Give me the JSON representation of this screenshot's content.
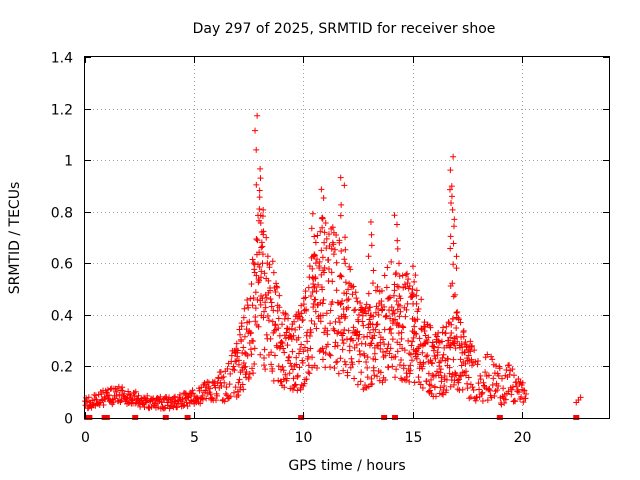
{
  "chart_data": {
    "type": "scatter",
    "title": "Day 297 of 2025, SRMTID for receiver shoe",
    "xlabel": "GPS time / hours",
    "ylabel": "SRMTID / TECUs",
    "xlim": [
      0,
      24
    ],
    "ylim": [
      0,
      1.4
    ],
    "xticks": [
      0,
      5,
      10,
      15,
      20
    ],
    "xtick_labels": [
      "0",
      "5",
      "10",
      "15",
      "20"
    ],
    "yticks": [
      0,
      0.2,
      0.4,
      0.6,
      0.8,
      1.0,
      1.2,
      1.4
    ],
    "ytick_labels": [
      "0",
      "0.2",
      "0.4",
      "0.6",
      "0.8",
      "1",
      "1.2",
      "1.4"
    ],
    "grid": true,
    "marker": "plus",
    "color": "#ff0000",
    "profile": [
      [
        0.0,
        0.06
      ],
      [
        0.5,
        0.07
      ],
      [
        1.0,
        0.08
      ],
      [
        1.5,
        0.09
      ],
      [
        2.0,
        0.08
      ],
      [
        2.5,
        0.07
      ],
      [
        3.0,
        0.06
      ],
      [
        3.5,
        0.06
      ],
      [
        4.0,
        0.06
      ],
      [
        4.5,
        0.07
      ],
      [
        5.0,
        0.08
      ],
      [
        5.5,
        0.1
      ],
      [
        6.0,
        0.12
      ],
      [
        6.5,
        0.16
      ],
      [
        7.0,
        0.22
      ],
      [
        7.5,
        0.35
      ],
      [
        8.0,
        0.6
      ],
      [
        8.5,
        0.45
      ],
      [
        9.0,
        0.3
      ],
      [
        9.5,
        0.28
      ],
      [
        10.0,
        0.32
      ],
      [
        10.5,
        0.5
      ],
      [
        11.0,
        0.55
      ],
      [
        11.5,
        0.5
      ],
      [
        12.0,
        0.45
      ],
      [
        12.5,
        0.32
      ],
      [
        13.0,
        0.3
      ],
      [
        13.5,
        0.38
      ],
      [
        14.0,
        0.42
      ],
      [
        14.5,
        0.38
      ],
      [
        15.0,
        0.4
      ],
      [
        15.5,
        0.3
      ],
      [
        16.0,
        0.22
      ],
      [
        16.5,
        0.26
      ],
      [
        17.0,
        0.3
      ],
      [
        17.5,
        0.22
      ],
      [
        18.0,
        0.18
      ],
      [
        18.5,
        0.17
      ],
      [
        19.0,
        0.15
      ],
      [
        19.5,
        0.14
      ],
      [
        20.0,
        0.1
      ],
      [
        20.2,
        0.09
      ]
    ],
    "spikes": [
      {
        "x": 7.9,
        "y": 1.2
      },
      {
        "x": 8.1,
        "y": 0.95
      },
      {
        "x": 10.9,
        "y": 0.91
      },
      {
        "x": 11.8,
        "y": 0.96
      },
      {
        "x": 13.1,
        "y": 0.77
      },
      {
        "x": 14.3,
        "y": 0.8
      },
      {
        "x": 16.8,
        "y": 1.03
      },
      {
        "x": 16.9,
        "y": 0.92
      },
      {
        "x": 10.5,
        "y": 0.8
      },
      {
        "x": 15.1,
        "y": 0.59
      }
    ],
    "late_segment": [
      [
        22.5,
        0.06
      ],
      [
        22.6,
        0.07
      ],
      [
        22.7,
        0.08
      ]
    ],
    "baseline_markers_x": [
      0.1,
      0.2,
      0.9,
      1.0,
      2.3,
      3.7,
      4.7,
      9.9,
      13.7,
      14.2,
      19.0,
      22.5
    ]
  }
}
